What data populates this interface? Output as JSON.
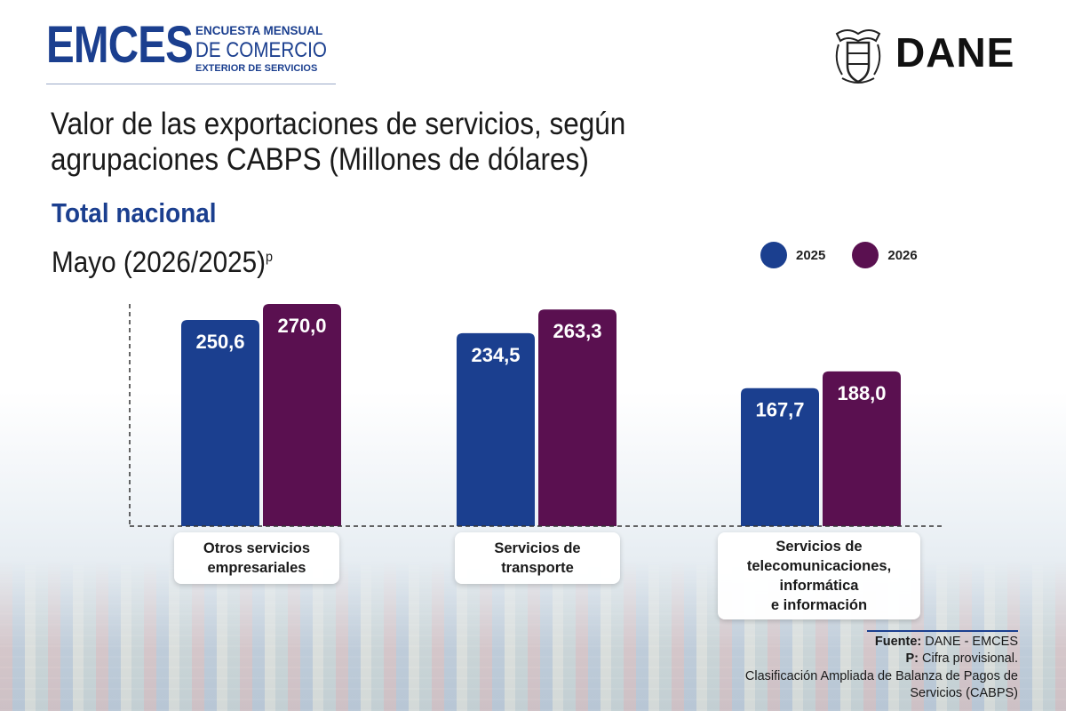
{
  "header": {
    "brand_main": "EMCES",
    "brand_line1": "ENCUESTA MENSUAL",
    "brand_line2": "DE COMERCIO",
    "brand_line3": "EXTERIOR DE SERVICIOS",
    "agency": "DANE"
  },
  "chart_data": {
    "type": "bar",
    "title": "Valor de las exportaciones de servicios, según agrupaciones CABPS (Millones de dólares)",
    "subtitle": "Total nacional",
    "period": "Mayo (2026/2025)",
    "period_sup": "p",
    "categories": [
      "Otros servicios\nempresariales",
      "Servicios de\ntransporte",
      "Servicios de\ntelecomunicaciones,\ninformática\ne información"
    ],
    "series": [
      {
        "name": "2025",
        "color": "#1b3f8f",
        "values": [
          250.6,
          234.5,
          167.7
        ],
        "labels": [
          "250,6",
          "234,5",
          "167,7"
        ]
      },
      {
        "name": "2026",
        "color": "#5a1050",
        "values": [
          270.0,
          263.3,
          188.0
        ],
        "labels": [
          "270,0",
          "263,3",
          "188,0"
        ]
      }
    ],
    "ylim": [
      0,
      270
    ],
    "legend_position": "top-right",
    "grid": false
  },
  "footer": {
    "source_label": "Fuente:",
    "source_value": "DANE - EMCES",
    "p_label": "P:",
    "p_value": "Cifra provisional.",
    "note_line1": "Clasificación Ampliada de Balanza de Pagos de",
    "note_line2": "Servicios (CABPS)"
  }
}
